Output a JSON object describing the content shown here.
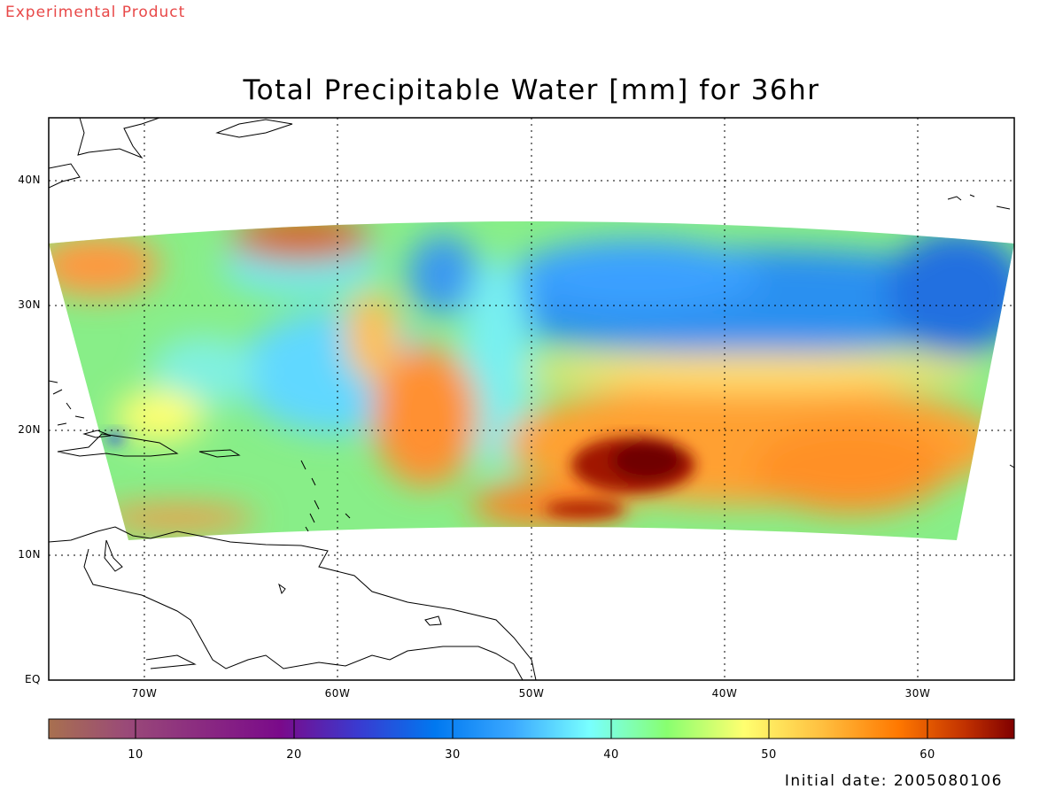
{
  "watermark": "Experimental Product",
  "title": "Total Precipitable Water [mm] for 36hr",
  "initial_date": "Initial date: 2005080106",
  "lat_labels": [
    "40N",
    "30N",
    "20N",
    "10N",
    "EQ"
  ],
  "lon_labels": [
    "70W",
    "60W",
    "50W",
    "40W",
    "30W"
  ],
  "colorbar": {
    "labels": [
      "10",
      "20",
      "30",
      "40",
      "50",
      "60"
    ],
    "range": [
      5,
      66
    ],
    "colors": [
      "#a8704f",
      "#9a4a78",
      "#7a0a8a",
      "#3a3ad0",
      "#0078f0",
      "#3aa8ff",
      "#78ffff",
      "#88ff70",
      "#ffff70",
      "#ffc040",
      "#ff7800",
      "#d04000",
      "#800000"
    ]
  },
  "map": {
    "lon_range": [
      -75,
      -25
    ],
    "lat_range": [
      0,
      45
    ],
    "grid_lons": [
      -70,
      -60,
      -50,
      -40,
      -30
    ],
    "grid_lats": [
      10,
      20,
      30,
      40
    ]
  }
}
